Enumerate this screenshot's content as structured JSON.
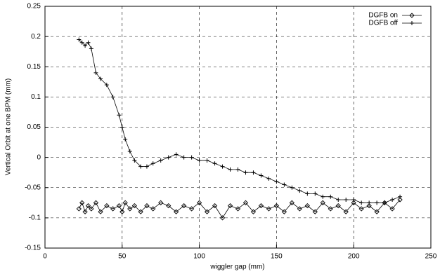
{
  "chart_data": {
    "type": "line",
    "xlabel": "wiggler gap (mm)",
    "ylabel": "Vertical Orbit at one BPM (mm)",
    "x": [
      22,
      24,
      26,
      28,
      30,
      33,
      36,
      40,
      44,
      48,
      50,
      52,
      55,
      58,
      62,
      66,
      70,
      75,
      80,
      85,
      90,
      95,
      100,
      105,
      110,
      115,
      120,
      125,
      130,
      135,
      140,
      145,
      150,
      155,
      160,
      165,
      170,
      175,
      180,
      185,
      190,
      195,
      200,
      205,
      210,
      215,
      220,
      225,
      230
    ],
    "series": [
      {
        "name": "DGFB on",
        "color": "#000000",
        "marker": "diamond",
        "values": [
          -0.085,
          -0.075,
          -0.09,
          -0.08,
          -0.085,
          -0.075,
          -0.09,
          -0.08,
          -0.085,
          -0.08,
          -0.09,
          -0.075,
          -0.085,
          -0.08,
          -0.09,
          -0.08,
          -0.085,
          -0.075,
          -0.08,
          -0.09,
          -0.08,
          -0.085,
          -0.075,
          -0.09,
          -0.08,
          -0.1,
          -0.08,
          -0.085,
          -0.075,
          -0.09,
          -0.08,
          -0.085,
          -0.08,
          -0.09,
          -0.075,
          -0.085,
          -0.08,
          -0.09,
          -0.075,
          -0.085,
          -0.08,
          -0.09,
          -0.075,
          -0.085,
          -0.08,
          -0.09,
          -0.075,
          -0.085,
          -0.07
        ]
      },
      {
        "name": "DGFB off",
        "color": "#000000",
        "marker": "plus",
        "values": [
          0.195,
          0.19,
          0.185,
          0.19,
          0.18,
          0.14,
          0.13,
          0.12,
          0.1,
          0.07,
          0.05,
          0.03,
          0.01,
          -0.005,
          -0.015,
          -0.015,
          -0.01,
          -0.005,
          0.0,
          0.005,
          0.0,
          0.0,
          -0.005,
          -0.005,
          -0.01,
          -0.015,
          -0.02,
          -0.02,
          -0.025,
          -0.025,
          -0.03,
          -0.035,
          -0.04,
          -0.045,
          -0.05,
          -0.055,
          -0.06,
          -0.06,
          -0.065,
          -0.065,
          -0.07,
          -0.07,
          -0.07,
          -0.075,
          -0.075,
          -0.075,
          -0.075,
          -0.07,
          -0.065
        ]
      }
    ],
    "xlim": [
      0,
      250
    ],
    "xticks": [
      0,
      50,
      100,
      150,
      200,
      250
    ],
    "ylim": [
      -0.15,
      0.25
    ],
    "yticks": [
      -0.15,
      -0.1,
      -0.05,
      0,
      0.05,
      0.1,
      0.15,
      0.2,
      0.25
    ],
    "grid": true,
    "legend": "top-right"
  }
}
